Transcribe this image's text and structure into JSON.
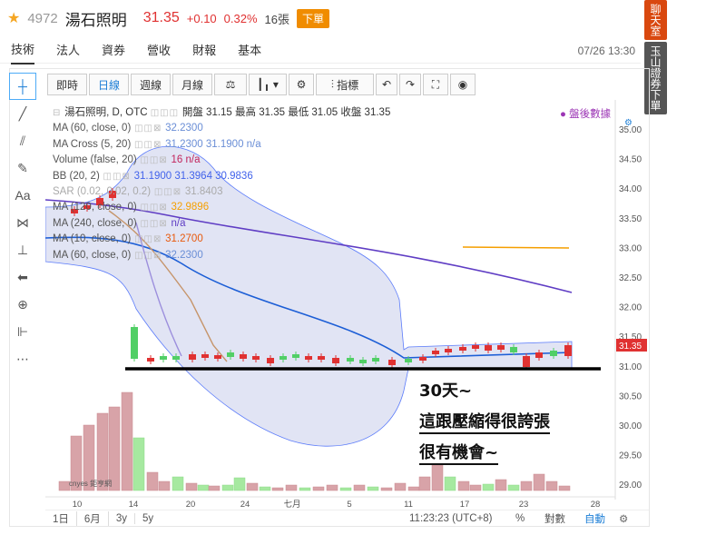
{
  "header": {
    "code": "4972",
    "name": "湯石照明",
    "price": "31.35",
    "change": "+0.10",
    "change_pct": "0.32%",
    "volume": "16張",
    "trade_label": "下單"
  },
  "nav": {
    "items": [
      "技術",
      "法人",
      "資券",
      "營收",
      "財報",
      "基本"
    ],
    "datetime": "07/26 13:30"
  },
  "side_tabs": [
    "聊天室",
    "玉山證券下單"
  ],
  "toolbar": {
    "buttons": [
      "即時",
      "日線",
      "週線",
      "月線"
    ],
    "indicator_label": "指標"
  },
  "legend": {
    "main": "湯石照明, D, OTC",
    "ohlc": "開盤 31.15 最高 31.35 最低 31.05 收盤 31.35",
    "after_hours": "● 盤後數據",
    "rows": [
      {
        "label": "MA (60, close, 0)",
        "values": "32.2300"
      },
      {
        "label": "MA Cross (5, 20)",
        "values": "31.2300 31.1900 n/a"
      },
      {
        "label": "Volume (false, 20)",
        "values": "16 n/a"
      },
      {
        "label": "BB (20, 2)",
        "values": "31.1900 31.3964 30.9836"
      },
      {
        "label": "SAR (0.02, 0.02, 0.2)",
        "values": "31.8403"
      },
      {
        "label": "MA (120, close, 0)",
        "values": "32.9896"
      },
      {
        "label": "MA (240, close, 0)",
        "values": "n/a"
      },
      {
        "label": "MA (10, close, 0)",
        "values": "31.2700"
      },
      {
        "label": "MA (60, close, 0)",
        "values": "32.2300"
      }
    ]
  },
  "y_axis": [
    "35.00",
    "34.50",
    "34.00",
    "33.50",
    "33.00",
    "32.50",
    "32.00",
    "31.50",
    "31.00",
    "30.50",
    "30.00",
    "29.50",
    "29.00"
  ],
  "current_price_tag": "31.35",
  "x_axis": [
    "10",
    "14",
    "20",
    "24",
    "七月",
    "5",
    "11",
    "17",
    "23",
    "28"
  ],
  "watermark": "cnyes 鉅亨網",
  "bottom_bar": {
    "ranges": [
      "1日",
      "6月",
      "3y",
      "5y"
    ],
    "time": "11:23:23 (UTC+8)",
    "pct": "%",
    "log": "對數",
    "auto": "自動"
  },
  "annotations": {
    "line1": "30天~",
    "line2": "這跟壓縮得很誇張",
    "line3": "很有機會~"
  },
  "colors": {
    "up": "#e03131",
    "down": "#51cf66",
    "bb_fill": "#a8b3e0",
    "ma_blue": "#1c5ed6",
    "ma_purple": "#5f3dc4",
    "ma_orange": "#f59f00"
  }
}
